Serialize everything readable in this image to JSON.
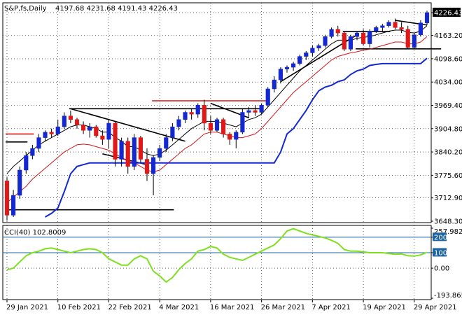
{
  "header": {
    "symbol_label": "S&P,fs,Daily",
    "ohlc_text": "4197.68 4231.68 4191.43 4226.43"
  },
  "colors": {
    "bull": "#1428d2",
    "bear": "#e01818",
    "ma_fast": "#000000",
    "ma_slow": "#d21414",
    "support_line": "#1428d2",
    "cci_line": "#7fe01e",
    "level_line": "#1e64a0",
    "price_tag_bg": "#000000",
    "price_tag_fg": "#ffffff"
  },
  "chart_data": [
    {
      "type": "candlestick",
      "title": "S&P,fs,Daily",
      "ylim": [
        3648.3,
        4242
      ],
      "y_ticks": [
        "4226.43",
        "4163.20",
        "4098.60",
        "4034.00",
        "3969.40",
        "3904.80",
        "3840.20",
        "3775.60",
        "3712.90",
        "3648.30"
      ],
      "y_tick_values": [
        4226.43,
        4163.2,
        4098.6,
        4034.0,
        3969.4,
        3904.8,
        3840.2,
        3775.6,
        3712.9,
        3648.3
      ],
      "current_price_label": "4226.43",
      "x_tick_labels": [
        "29 Jan 2021",
        "10 Feb 2021",
        "22 Feb 2021",
        "4 Mar 2021",
        "16 Mar 2021",
        "26 Mar 2021",
        "7 Apr 2021",
        "19 Apr 2021",
        "29 Apr 2021"
      ],
      "x_tick_index": [
        0,
        8,
        16,
        24,
        32,
        40,
        48,
        56,
        64
      ],
      "grid": true,
      "candles": [
        [
          3760,
          3770,
          3650,
          3665
        ],
        [
          3665,
          3735,
          3660,
          3720
        ],
        [
          3720,
          3800,
          3710,
          3790
        ],
        [
          3790,
          3840,
          3780,
          3830
        ],
        [
          3830,
          3860,
          3820,
          3850
        ],
        [
          3850,
          3890,
          3840,
          3880
        ],
        [
          3880,
          3900,
          3870,
          3895
        ],
        [
          3895,
          3905,
          3880,
          3890
        ],
        [
          3890,
          3930,
          3885,
          3910
        ],
        [
          3910,
          3950,
          3905,
          3940
        ],
        [
          3940,
          3955,
          3920,
          3930
        ],
        [
          3930,
          3935,
          3905,
          3915
        ],
        [
          3915,
          3925,
          3890,
          3900
        ],
        [
          3900,
          3920,
          3880,
          3910
        ],
        [
          3910,
          3915,
          3880,
          3885
        ],
        [
          3885,
          3900,
          3860,
          3875
        ],
        [
          3875,
          3930,
          3850,
          3920
        ],
        [
          3920,
          3925,
          3800,
          3820
        ],
        [
          3820,
          3880,
          3800,
          3870
        ],
        [
          3870,
          3880,
          3780,
          3800
        ],
        [
          3800,
          3890,
          3790,
          3880
        ],
        [
          3880,
          3885,
          3810,
          3820
        ],
        [
          3820,
          3850,
          3760,
          3780
        ],
        [
          3780,
          3830,
          3720,
          3825
        ],
        [
          3825,
          3860,
          3815,
          3850
        ],
        [
          3850,
          3890,
          3840,
          3880
        ],
        [
          3880,
          3920,
          3870,
          3910
        ],
        [
          3910,
          3940,
          3900,
          3930
        ],
        [
          3930,
          3955,
          3920,
          3950
        ],
        [
          3950,
          3960,
          3930,
          3945
        ],
        [
          3945,
          3975,
          3935,
          3970
        ],
        [
          3970,
          3985,
          3900,
          3920
        ],
        [
          3920,
          3940,
          3890,
          3900
        ],
        [
          3900,
          3935,
          3895,
          3930
        ],
        [
          3930,
          3935,
          3880,
          3890
        ],
        [
          3890,
          3895,
          3860,
          3875
        ],
        [
          3875,
          3900,
          3850,
          3895
        ],
        [
          3895,
          3960,
          3890,
          3950
        ],
        [
          3950,
          3965,
          3935,
          3955
        ],
        [
          3955,
          3970,
          3940,
          3950
        ],
        [
          3950,
          3975,
          3945,
          3970
        ],
        [
          3970,
          4020,
          3965,
          4015
        ],
        [
          4015,
          4050,
          4005,
          4040
        ],
        [
          4040,
          4075,
          4030,
          4070
        ],
        [
          4070,
          4080,
          4060,
          4075
        ],
        [
          4075,
          4090,
          4065,
          4085
        ],
        [
          4085,
          4110,
          4080,
          4105
        ],
        [
          4105,
          4120,
          4095,
          4115
        ],
        [
          4115,
          4135,
          4105,
          4128
        ],
        [
          4128,
          4140,
          4120,
          4135
        ],
        [
          4135,
          4165,
          4130,
          4160
        ],
        [
          4160,
          4185,
          4155,
          4180
        ],
        [
          4180,
          4190,
          4160,
          4170
        ],
        [
          4170,
          4175,
          4120,
          4125
        ],
        [
          4125,
          4165,
          4120,
          4160
        ],
        [
          4160,
          4175,
          4150,
          4170
        ],
        [
          4170,
          4180,
          4135,
          4140
        ],
        [
          4140,
          4180,
          4130,
          4175
        ],
        [
          4175,
          4190,
          4170,
          4185
        ],
        [
          4185,
          4195,
          4175,
          4190
        ],
        [
          4190,
          4205,
          4185,
          4200
        ],
        [
          4200,
          4210,
          4180,
          4185
        ],
        [
          4185,
          4200,
          4170,
          4180
        ],
        [
          4180,
          4190,
          4125,
          4130
        ],
        [
          4130,
          4170,
          4125,
          4165
        ],
        [
          4165,
          4205,
          4160,
          4198
        ],
        [
          4197.68,
          4231.68,
          4191.43,
          4226.43
        ]
      ],
      "overlay_lines": [
        {
          "name": "upper-band",
          "color": "#000000",
          "y": [
            3780,
            3800,
            3815,
            3830,
            3845,
            3860,
            3870,
            3880,
            3890,
            3900,
            3910,
            3915,
            3915,
            3910,
            3905,
            3895,
            3895,
            3880,
            3870,
            3855,
            3855,
            3845,
            3835,
            3830,
            3835,
            3845,
            3860,
            3875,
            3890,
            3905,
            3915,
            3925,
            3925,
            3925,
            3920,
            3915,
            3910,
            3920,
            3930,
            3935,
            3945,
            3965,
            3985,
            4005,
            4025,
            4045,
            4065,
            4080,
            4095,
            4110,
            4125,
            4140,
            4150,
            4150,
            4150,
            4155,
            4158,
            4160,
            4165,
            4170,
            4175,
            4178,
            4178,
            4172,
            4170,
            4175,
            4190
          ]
        },
        {
          "name": "lower-band",
          "color": "#d21414",
          "y": [
            3700,
            3715,
            3730,
            3745,
            3765,
            3780,
            3795,
            3810,
            3825,
            3840,
            3850,
            3860,
            3862,
            3860,
            3855,
            3850,
            3845,
            3835,
            3825,
            3815,
            3810,
            3800,
            3790,
            3785,
            3790,
            3805,
            3820,
            3835,
            3850,
            3860,
            3875,
            3890,
            3895,
            3895,
            3890,
            3885,
            3880,
            3880,
            3885,
            3890,
            3905,
            3925,
            3945,
            3965,
            3985,
            4005,
            4020,
            4035,
            4050,
            4065,
            4080,
            4095,
            4105,
            4110,
            4115,
            4118,
            4122,
            4125,
            4130,
            4135,
            4140,
            4145,
            4145,
            4140,
            4140,
            4145,
            4160
          ]
        },
        {
          "name": "trailing-stop",
          "color": "#1428d2",
          "start_index": 6,
          "y": [
            3660,
            3670,
            3685,
            3730,
            3780,
            3800,
            3805,
            3810,
            3810,
            3810,
            3810,
            3810,
            3810,
            3810,
            3810,
            3810,
            3810,
            3810,
            3810,
            3810,
            3810,
            3810,
            3810,
            3810,
            3810,
            3810,
            3810,
            3810,
            3810,
            3810,
            3810,
            3810,
            3810,
            3810,
            3810,
            3810,
            3810,
            3840,
            3890,
            3905,
            3930,
            3955,
            3985,
            4010,
            4020,
            4025,
            4035,
            4040,
            4055,
            4065,
            4070,
            4080,
            4083,
            4085,
            4085,
            4085,
            4085,
            4085,
            4085,
            4085,
            4100
          ]
        }
      ],
      "annotations": [
        {
          "type": "hline",
          "color": "#d21414",
          "y": 3890,
          "x": [
            0,
            4
          ]
        },
        {
          "type": "hline",
          "color": "#000000",
          "y": 3868,
          "x": [
            0,
            3
          ]
        },
        {
          "type": "hline",
          "color": "#000000",
          "y": 3680,
          "x": [
            0,
            26
          ]
        },
        {
          "type": "hline",
          "color": "#000000",
          "y": 3960,
          "x": [
            10,
            40
          ]
        },
        {
          "type": "hline",
          "color": "#d21414",
          "y": 3982,
          "x": [
            23,
            41
          ]
        },
        {
          "type": "trend",
          "color": "#000000",
          "from": [
            10,
            3960
          ],
          "to": [
            28,
            3870
          ]
        },
        {
          "type": "trend",
          "color": "#000000",
          "from": [
            15,
            3835
          ],
          "to": [
            22,
            3805
          ]
        },
        {
          "type": "trend",
          "color": "#000000",
          "from": [
            32,
            3975
          ],
          "to": [
            38,
            3935
          ]
        },
        {
          "type": "trend",
          "color": "#000000",
          "from": [
            43,
            4035
          ],
          "to": [
            55,
            4165
          ]
        },
        {
          "type": "hline",
          "color": "#000000",
          "y": 4174,
          "x": [
            53,
            60
          ]
        },
        {
          "type": "hline",
          "color": "#000000",
          "y": 4126,
          "x": [
            55,
            68
          ]
        },
        {
          "type": "trend",
          "color": "#000000",
          "from": [
            61,
            4205
          ],
          "to": [
            66,
            4192
          ]
        }
      ]
    },
    {
      "type": "line",
      "title": "CCI(40) 102.8009",
      "ylim": [
        -193.8653,
        257.9823
      ],
      "y_ticks": [
        "257.9823",
        "200",
        "100",
        "0.00",
        "-193.8653"
      ],
      "y_tick_values": [
        257.9823,
        200,
        100,
        0,
        -193.8653
      ],
      "levels": [
        200,
        100
      ],
      "series": [
        {
          "values": [
            -10,
            0,
            40,
            80,
            100,
            110,
            125,
            130,
            120,
            110,
            100,
            110,
            120,
            125,
            120,
            100,
            60,
            40,
            20,
            20,
            60,
            80,
            60,
            -20,
            -50,
            -90,
            -60,
            -10,
            30,
            60,
            110,
            120,
            140,
            130,
            90,
            70,
            60,
            50,
            70,
            90,
            110,
            130,
            150,
            190,
            240,
            255,
            240,
            225,
            215,
            205,
            195,
            180,
            160,
            120,
            110,
            110,
            105,
            100,
            100,
            100,
            95,
            90,
            92,
            80,
            78,
            85,
            102.8
          ]
        }
      ]
    }
  ]
}
